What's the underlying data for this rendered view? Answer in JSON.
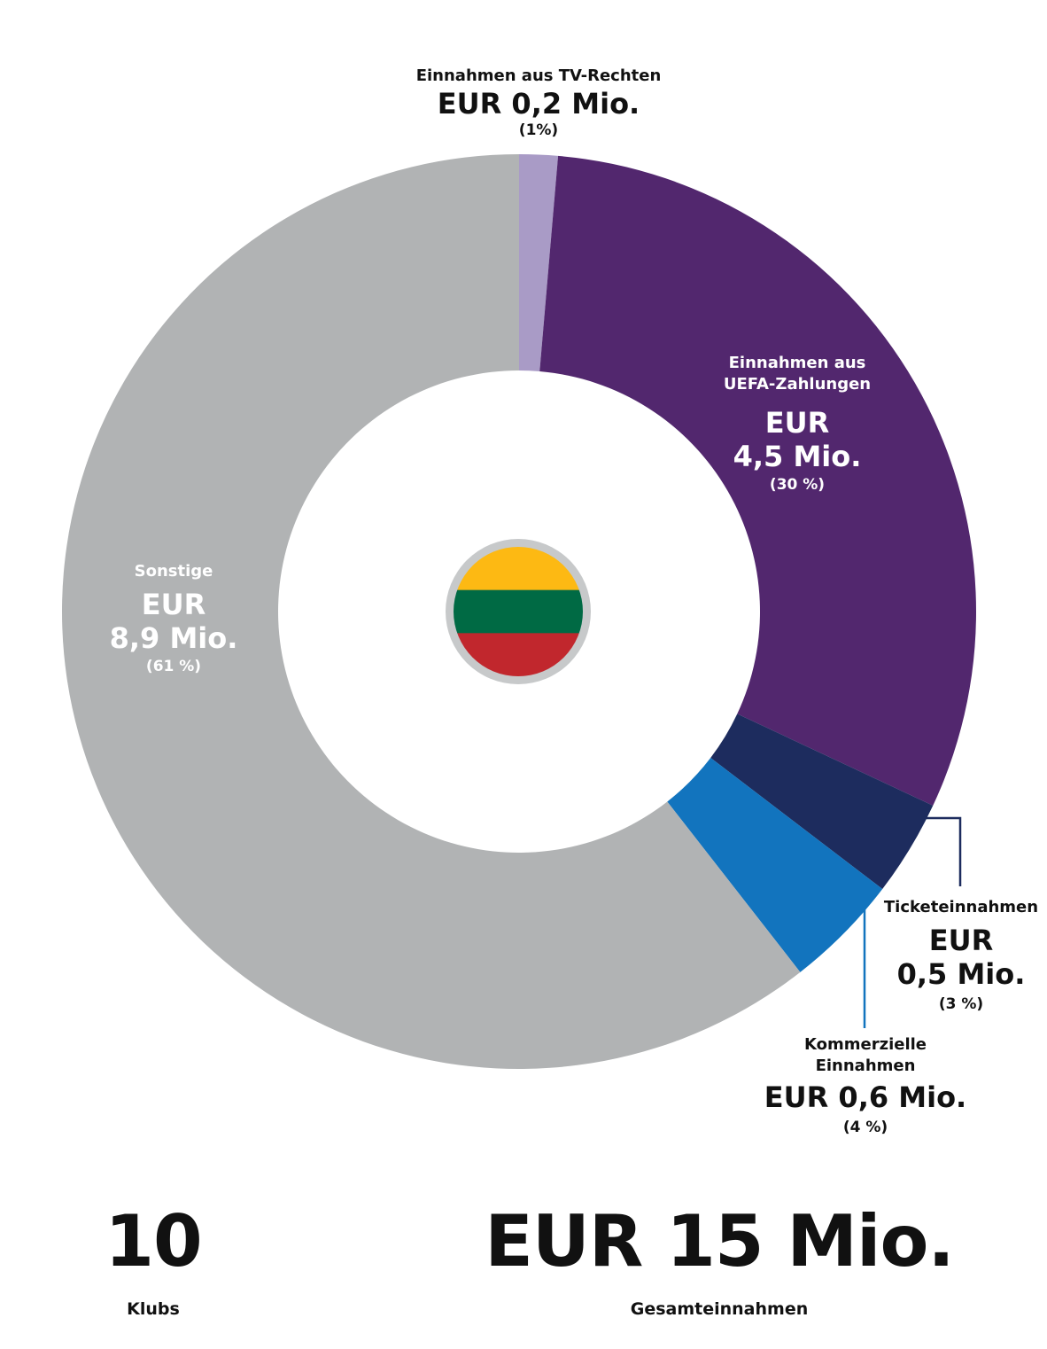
{
  "chart_data": {
    "type": "pie",
    "categories": [
      "Einnahmen aus TV-Rechten",
      "Einnahmen aus UEFA-Zahlungen",
      "Ticketeinnahmen",
      "Kommerzielle Einnahmen",
      "Sonstige"
    ],
    "values": [
      0.2,
      4.5,
      0.5,
      0.6,
      8.9
    ],
    "percentages": [
      "(1%)",
      "(30 %)",
      "(3 %)",
      "(4 %)",
      "(61 %)"
    ],
    "colors": [
      "#a99bc6",
      "#52276e",
      "#1d2c5e",
      "#1274be",
      "#b1b3b4"
    ],
    "donut": true
  },
  "labels": {
    "tv": {
      "title": "Einnahmen aus TV-Rechten",
      "value": "EUR 0,2 Mio.",
      "pct": "(1%)"
    },
    "uefa": {
      "title1": "Einnahmen aus",
      "title2": "UEFA-Zahlungen",
      "value1": "EUR",
      "value2": "4,5 Mio.",
      "pct": "(30 %)"
    },
    "sonstige": {
      "title": "Sonstige",
      "value1": "EUR",
      "value2": "8,9 Mio.",
      "pct": "(61 %)"
    },
    "ticket": {
      "title": "Ticketeinnahmen",
      "value1": "EUR",
      "value2": "0,5 Mio.",
      "pct": "(3 %)"
    },
    "kommerz": {
      "title1": "Kommerzielle",
      "title2": "Einnahmen",
      "value": "EUR 0,6 Mio.",
      "pct": "(4 %)"
    }
  },
  "flag": {
    "name": "lithuania-flag",
    "colors": [
      "#fdb913",
      "#006a44",
      "#c1272d"
    ],
    "ring": "#c7c9ca"
  },
  "summary": {
    "clubs_value": "10",
    "clubs_label": "Klubs",
    "total_value": "EUR 15 Mio.",
    "total_label": "Gesamteinnahmen"
  },
  "leader_colors": {
    "ticket": "#1d2c5e",
    "kommerz": "#1274be"
  }
}
